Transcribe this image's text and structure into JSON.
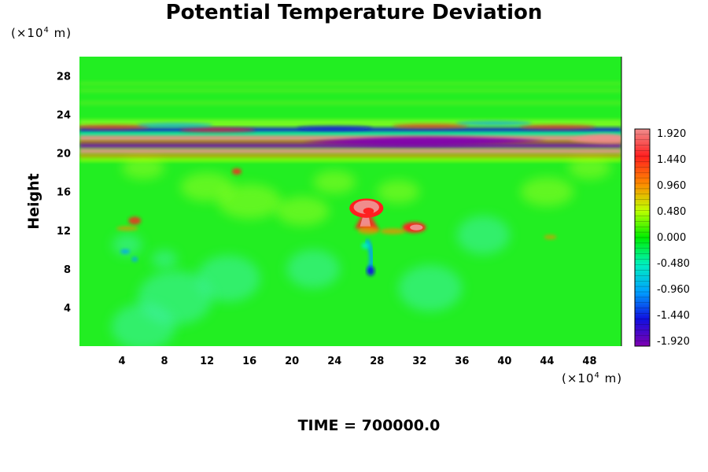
{
  "chart_data": {
    "type": "heatmap",
    "title": "Potential Temperature Deviation",
    "ylabel": "Height",
    "xlabel": "",
    "x_unit_prefix": "(×10",
    "x_unit_exp": "4",
    "x_unit_suffix": " m)",
    "y_unit_prefix": "(×10",
    "y_unit_exp": "4",
    "y_unit_suffix": " m)",
    "xlim": [
      0,
      51
    ],
    "ylim": [
      0,
      30
    ],
    "x_ticks": [
      4,
      8,
      12,
      16,
      20,
      24,
      28,
      32,
      36,
      40,
      44,
      48
    ],
    "y_ticks": [
      4,
      8,
      12,
      16,
      20,
      24,
      28
    ],
    "colorbar": {
      "labels": [
        "1.920",
        "1.440",
        "0.960",
        "0.480",
        "0.000",
        "-0.480",
        "-0.960",
        "-1.440",
        "-1.920"
      ],
      "values": [
        1.92,
        1.44,
        0.96,
        0.48,
        0.0,
        -0.48,
        -0.96,
        -1.44,
        -1.92
      ],
      "colors": [
        "#f08c8c",
        "#ff2020",
        "#ff8800",
        "#c0ff00",
        "#00ee00",
        "#00f0c0",
        "#00a0ff",
        "#1010e0",
        "#8000b0"
      ]
    },
    "background_color": "#22ee22",
    "features": [
      {
        "name": "upper-band",
        "y_range": [
          19.8,
          22.8
        ],
        "min_value": -1.92,
        "max_value": 1.92
      },
      {
        "name": "mushroom-plume",
        "x": 27,
        "y": 14,
        "max_value": 1.92
      },
      {
        "name": "cool-tail",
        "x": 27.5,
        "y": 8,
        "min_value": -1.44
      },
      {
        "name": "warm-blob",
        "x": 31.5,
        "y": 12.3,
        "max_value": 1.44
      }
    ]
  },
  "footer": {
    "label": "TIME = 700000.0"
  }
}
